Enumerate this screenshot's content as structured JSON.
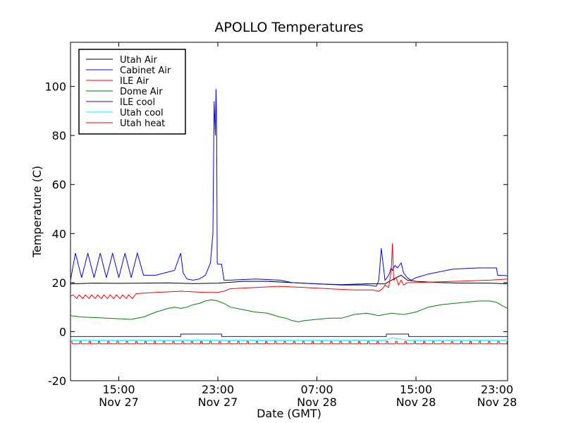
{
  "chart_data": {
    "type": "line",
    "title": "APOLLO Temperatures",
    "xlabel": "Date (GMT)",
    "ylabel": "Temperature (C)",
    "x_unit": "hours since Nov 27 00:00 GMT",
    "xlim": [
      11.1,
      46.4
    ],
    "ylim": [
      -20,
      118
    ],
    "yticks": [
      -20,
      0,
      20,
      40,
      60,
      80,
      100
    ],
    "xticks": [
      {
        "x": 15,
        "time": "15:00",
        "date": "Nov 27"
      },
      {
        "x": 23,
        "time": "23:00",
        "date": "Nov 27"
      },
      {
        "x": 31,
        "time": "07:00",
        "date": "Nov 28"
      },
      {
        "x": 39,
        "time": "15:00",
        "date": "Nov 28"
      },
      {
        "x": 47,
        "time": "23:00",
        "date": "Nov 28"
      }
    ],
    "legend_position": "top-left",
    "series": [
      {
        "name": "Utah Air",
        "color": "#000000",
        "x": [
          11.1,
          13.0,
          15.0,
          17.0,
          19.0,
          21.0,
          23.0,
          25.0,
          27.0,
          29.0,
          31.0,
          33.0,
          35.0,
          36.5,
          37.2,
          37.8,
          38.3,
          39.0,
          41.0,
          43.0,
          45.0,
          46.4
        ],
        "y": [
          19.5,
          19.8,
          19.7,
          19.8,
          19.9,
          19.6,
          19.8,
          20.5,
          20.5,
          20.0,
          19.5,
          19.2,
          19.5,
          19.5,
          21.5,
          23.0,
          21.0,
          20.5,
          20.0,
          19.8,
          19.8,
          19.5
        ]
      },
      {
        "name": "Cabinet Air",
        "color": "#0000ff",
        "x": [
          11.1,
          11.5,
          12.0,
          12.5,
          13.0,
          13.5,
          14.0,
          14.5,
          15.0,
          15.5,
          16.0,
          16.5,
          17.0,
          18.0,
          19.5,
          20.0,
          20.2,
          20.5,
          21.0,
          21.5,
          22.0,
          22.4,
          22.6,
          22.7,
          22.8,
          22.85,
          22.9,
          22.95,
          23.0,
          23.3,
          23.5,
          24.0,
          26.0,
          28.0,
          29.0,
          31.0,
          33.0,
          35.0,
          35.8,
          36.0,
          36.2,
          36.5,
          36.8,
          37.0,
          37.1,
          37.3,
          37.5,
          37.8,
          38.0,
          38.3,
          38.6,
          39.0,
          40.0,
          42.0,
          44.0,
          45.5,
          45.6,
          46.4
        ],
        "y": [
          21,
          32,
          22,
          32,
          22,
          32,
          22,
          32,
          22,
          32,
          22,
          32,
          23,
          23,
          25,
          32,
          24,
          21.5,
          21,
          21.5,
          23,
          28,
          40,
          94,
          80,
          99,
          84,
          28,
          27.5,
          27.5,
          21,
          21,
          21.5,
          21,
          20,
          19.5,
          19,
          19,
          18.5,
          21,
          34,
          21,
          23,
          26,
          25,
          27,
          26,
          28,
          24,
          22,
          21,
          22,
          23.5,
          25.5,
          26,
          26,
          23,
          22.8
        ]
      },
      {
        "name": "ILE Air",
        "color": "#ff0000",
        "x": [
          11.1,
          11.3,
          11.6,
          11.8,
          12.1,
          12.3,
          12.6,
          12.8,
          13.1,
          13.3,
          13.6,
          13.8,
          14.1,
          14.3,
          14.6,
          14.8,
          15.1,
          15.3,
          15.6,
          15.8,
          16.1,
          16.4,
          18.0,
          20.0,
          22.0,
          23.0,
          23.5,
          24.0,
          26.0,
          28.0,
          30.0,
          32.0,
          34.0,
          35.5,
          36.0,
          36.3,
          36.5,
          36.8,
          37.0,
          37.1,
          37.2,
          37.4,
          37.6,
          37.8,
          38.0,
          38.3,
          39.0,
          42.0,
          45.0,
          46.4
        ],
        "y": [
          14.5,
          15,
          13.5,
          15,
          13.5,
          15,
          13.5,
          15,
          13.5,
          15,
          13.5,
          15,
          13.5,
          15,
          13.5,
          15,
          13.5,
          15,
          13.5,
          15,
          13.5,
          15.5,
          16,
          16.5,
          16,
          16,
          16.5,
          17.5,
          18,
          18.5,
          18,
          17.5,
          17,
          17,
          16.5,
          17.5,
          19,
          18,
          25,
          36,
          21,
          22,
          19,
          21,
          19,
          20,
          20,
          20.5,
          21,
          21.5
        ]
      },
      {
        "name": "Dome Air",
        "color": "#008000",
        "x": [
          11.1,
          12.0,
          14.0,
          16.0,
          17.0,
          18.0,
          19.0,
          19.5,
          20.0,
          20.5,
          21.0,
          21.5,
          22.0,
          22.5,
          23.0,
          23.5,
          24.0,
          25.0,
          26.0,
          27.0,
          28.0,
          28.5,
          29.0,
          29.5,
          30.0,
          31.0,
          32.0,
          33.0,
          34.0,
          35.0,
          36.0,
          37.0,
          38.0,
          39.0,
          40.0,
          41.0,
          43.0,
          44.0,
          45.0,
          45.5,
          46.0,
          46.4
        ],
        "y": [
          6.5,
          6.0,
          5.5,
          5.0,
          6.0,
          8.0,
          9.5,
          10,
          9.5,
          10,
          11,
          11.5,
          12.5,
          13,
          12.5,
          11.5,
          10,
          9,
          8,
          7.5,
          6,
          5.5,
          4.5,
          4,
          4.5,
          5,
          5.5,
          5.5,
          7,
          7.5,
          6.5,
          7.5,
          7,
          8,
          10,
          11,
          12,
          12.5,
          12.5,
          12,
          10.5,
          9.5
        ]
      },
      {
        "name": "ILE cool",
        "color": "#3300aa",
        "x": [
          11.1,
          20.0,
          20.01,
          23.3,
          23.31,
          36.6,
          36.61,
          38.4,
          38.41,
          46.4
        ],
        "y": [
          -2.0,
          -2.0,
          -1.0,
          -1.0,
          -2.0,
          -2.0,
          -1.0,
          -1.0,
          -2.0,
          -2.0
        ]
      },
      {
        "name": "Utah cool",
        "color": "#00ffff",
        "x": [
          11.1,
          36.6,
          37.0,
          38.4,
          38.5,
          46.4
        ],
        "y": [
          -3.5,
          -3.5,
          -2.5,
          -3.5,
          -3.5,
          -3.5
        ]
      },
      {
        "name": "Utah heat",
        "color": "#ff0000",
        "x": [
          11.1,
          46.4
        ],
        "y": [
          -5.0,
          -5.0
        ]
      }
    ]
  }
}
